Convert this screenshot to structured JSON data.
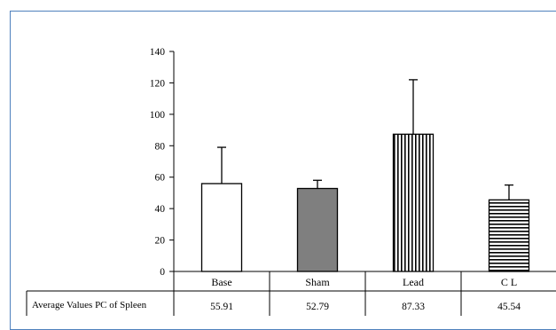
{
  "chart_data": {
    "type": "bar",
    "categories": [
      "Base",
      "Sham",
      "Lead",
      "C L"
    ],
    "series": [
      {
        "name": "Average Values PC of Spleen",
        "values": [
          55.91,
          52.79,
          87.33,
          45.54
        ],
        "error_upper": [
          79,
          58,
          122,
          55
        ]
      }
    ],
    "value_labels": [
      "55.91",
      "52.79",
      "87.33",
      "45.54"
    ],
    "ylim": [
      0,
      140
    ],
    "yticks": [
      0,
      20,
      40,
      60,
      80,
      100,
      120,
      140
    ],
    "data_table": true,
    "fills": [
      "open",
      "solid-gray",
      "vertical-stripes",
      "horizontal-stripes"
    ]
  },
  "colors": {
    "frame_border": "#4f81bd",
    "sham_fill": "#7f7f7f",
    "stroke": "#000000"
  }
}
